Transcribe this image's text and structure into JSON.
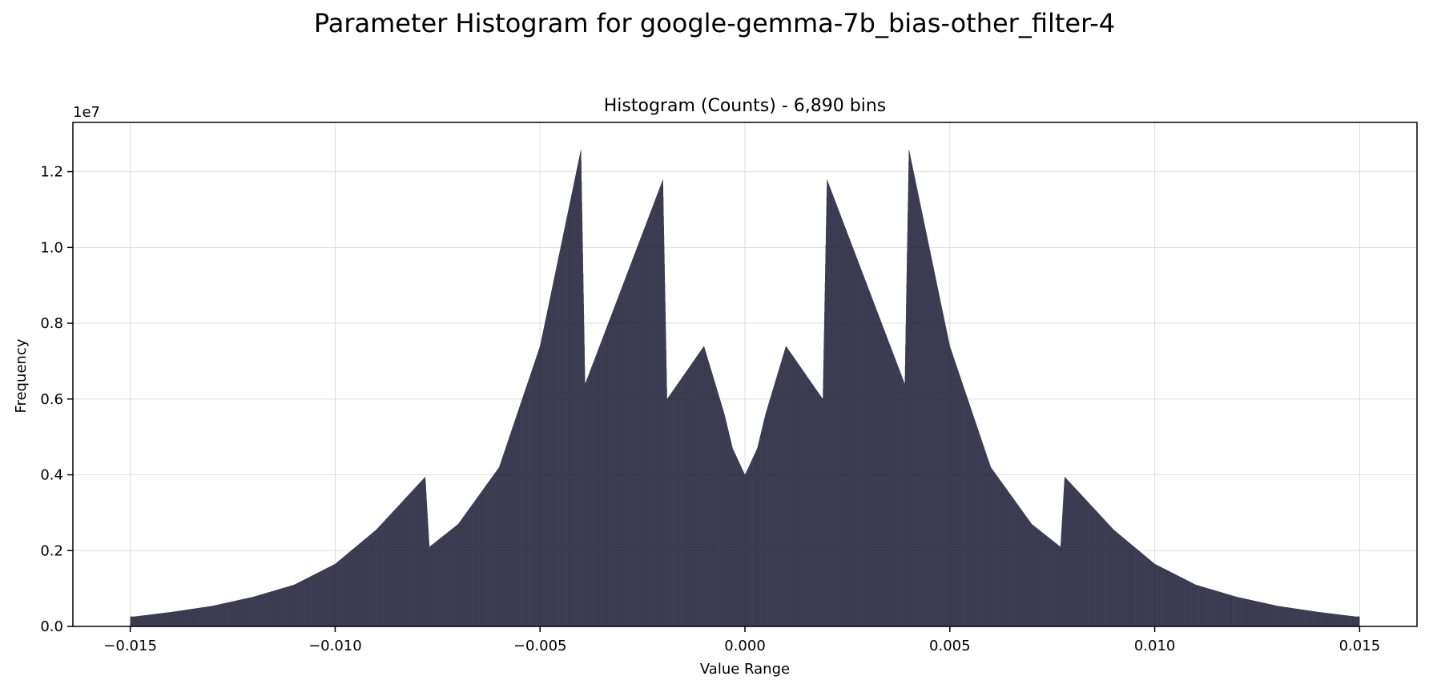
{
  "chart_data": {
    "type": "bar",
    "title": "Parameter Histogram for google-gemma-7b_bias-other_filter-4",
    "subtitle": "Histogram (Counts) - 6,890 bins",
    "xlabel": "Value Range",
    "ylabel": "Frequency",
    "y_offset_label": "1e7",
    "xlim": [
      -0.0164,
      0.0164
    ],
    "ylim": [
      0,
      13300000
    ],
    "x_ticks": [
      -0.015,
      -0.01,
      -0.005,
      0.0,
      0.005,
      0.01,
      0.015
    ],
    "x_tick_labels": [
      "−0.015",
      "−0.010",
      "−0.005",
      "0.000",
      "0.005",
      "0.010",
      "0.015"
    ],
    "y_ticks": [
      0,
      2000000,
      4000000,
      6000000,
      8000000,
      10000000,
      12000000
    ],
    "y_tick_labels": [
      "0.0",
      "0.2",
      "0.4",
      "0.6",
      "0.8",
      "1.0",
      "1.2"
    ],
    "grid": true,
    "bar_color": "#1a1a33",
    "bar_edge_color": "#ffffff",
    "grid_color": "#dddddd",
    "x_range": [
      -0.015,
      0.015
    ],
    "num_bins": 6890,
    "envelope_points": [
      [
        0.0,
        4000000
      ],
      [
        0.0003,
        4700000
      ],
      [
        0.0005,
        5600000
      ],
      [
        0.001,
        7400000
      ],
      [
        0.0019,
        6000000
      ],
      [
        0.002,
        11800000
      ],
      [
        0.0039,
        6400000
      ],
      [
        0.004,
        12600000
      ],
      [
        0.005,
        7400000
      ],
      [
        0.006,
        4200000
      ],
      [
        0.007,
        2700000
      ],
      [
        0.0077,
        2100000
      ],
      [
        0.0078,
        3950000
      ],
      [
        0.009,
        2550000
      ],
      [
        0.01,
        1650000
      ],
      [
        0.011,
        1100000
      ],
      [
        0.012,
        780000
      ],
      [
        0.013,
        540000
      ],
      [
        0.014,
        380000
      ],
      [
        0.0149,
        260000
      ]
    ]
  }
}
